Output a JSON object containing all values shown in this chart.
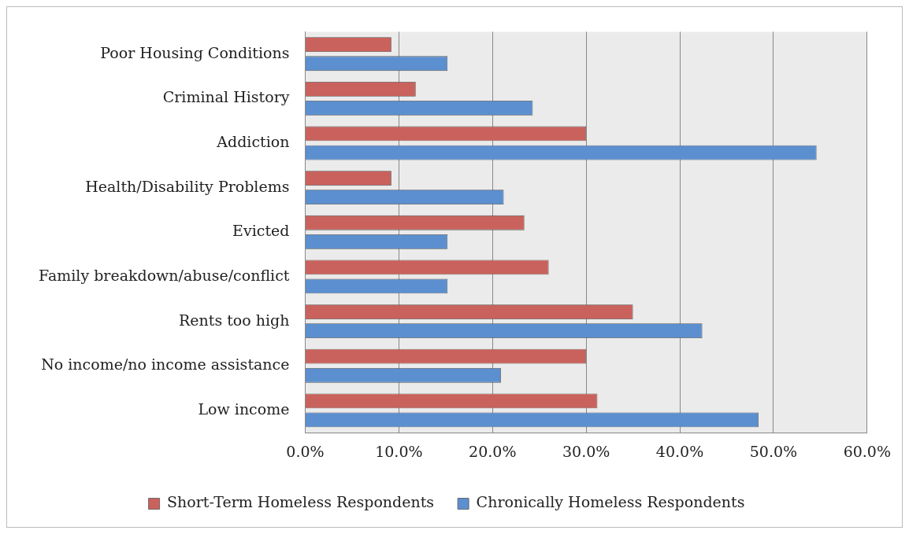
{
  "chart_data": {
    "type": "bar",
    "orientation": "horizontal",
    "categories": [
      "Poor Housing Conditions",
      "Criminal History",
      "Addiction",
      "Health/Disability Problems",
      "Evicted",
      "Family breakdown/abuse/conflict",
      "Rents too high",
      "No income/no income assistance",
      "Low income"
    ],
    "series": [
      {
        "name": "Short-Term Homeless Respondents",
        "color": "#c9625c",
        "values": [
          9.2,
          11.8,
          30.0,
          9.2,
          23.4,
          26.0,
          35.0,
          30.0,
          31.2
        ]
      },
      {
        "name": "Chronically Homeless Respondents",
        "color": "#5b8fcf",
        "values": [
          15.2,
          24.3,
          54.6,
          21.2,
          15.2,
          15.2,
          42.4,
          20.9,
          48.4
        ]
      }
    ],
    "xlim": [
      0,
      60
    ],
    "xticks": [
      {
        "value": 0,
        "label": "0.0%"
      },
      {
        "value": 10,
        "label": "10.0%"
      },
      {
        "value": 20,
        "label": "20.0%"
      },
      {
        "value": 30,
        "label": "30.0%"
      },
      {
        "value": 40,
        "label": "40.0%"
      },
      {
        "value": 50,
        "label": "50.0%"
      },
      {
        "value": 60,
        "label": "60.0%"
      }
    ],
    "grid": "x",
    "legend": "bottom"
  }
}
